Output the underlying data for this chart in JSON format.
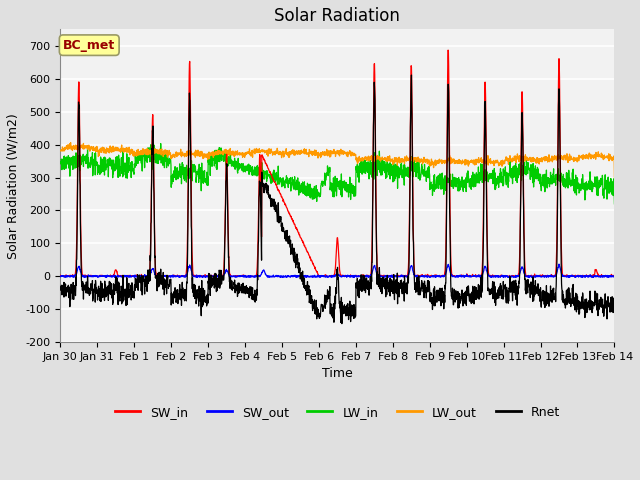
{
  "title": "Solar Radiation",
  "xlabel": "Time",
  "ylabel": "Solar Radiation (W/m2)",
  "ylim": [
    -200,
    750
  ],
  "yticks": [
    -200,
    -100,
    0,
    100,
    200,
    300,
    400,
    500,
    600,
    700
  ],
  "date_labels": [
    "Jan 30",
    "Jan 31",
    "Feb 1",
    "Feb 2",
    "Feb 3",
    "Feb 4",
    "Feb 5",
    "Feb 6",
    "Feb 7",
    "Feb 8",
    "Feb 9",
    "Feb 10",
    "Feb 11",
    "Feb 12",
    "Feb 13",
    "Feb 14"
  ],
  "colors": {
    "SW_in": "#ff0000",
    "SW_out": "#0000ff",
    "LW_in": "#00cc00",
    "LW_out": "#ff9900",
    "Rnet": "#000000"
  },
  "fig_bg_color": "#e0e0e0",
  "plot_bg_color": "#f2f2f2",
  "annotation_box_color": "#ffff99",
  "annotation_text": "BC_met",
  "annotation_text_color": "#990000",
  "grid_color": "#ffffff",
  "title_fontsize": 12,
  "label_fontsize": 9,
  "tick_fontsize": 8,
  "legend_fontsize": 9
}
